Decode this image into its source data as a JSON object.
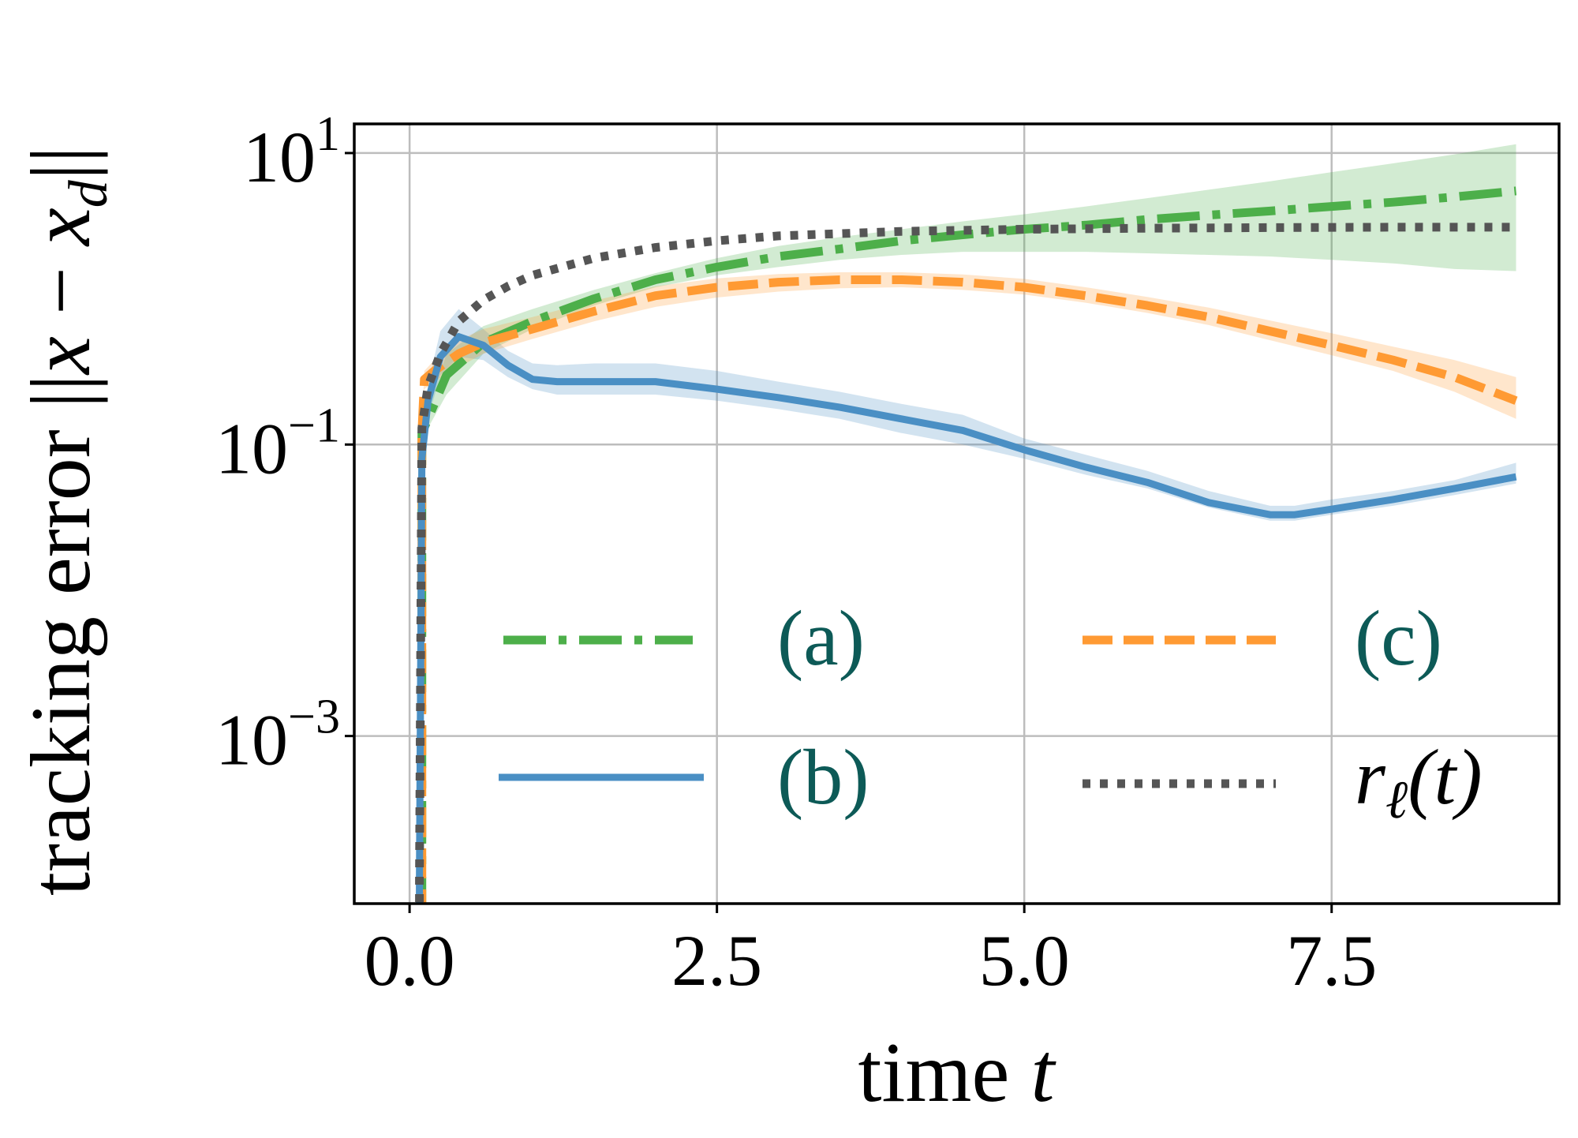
{
  "chart_data": {
    "type": "line",
    "title": "",
    "xlabel": "time t",
    "xlabel_parts": {
      "text": "time ",
      "var": "t"
    },
    "ylabel": "tracking error ||x − x_d||",
    "ylabel_parts": {
      "text": "tracking error ",
      "norm_open": "||",
      "var": "x",
      "minus": " − ",
      "var2": "x",
      "sub": "d",
      "norm_close": "||"
    },
    "yscale": "log",
    "xlim": [
      -0.45,
      9.35
    ],
    "ylim_exp": [
      -4.15,
      1.2
    ],
    "grid": true,
    "x_ticks": [
      0.0,
      2.5,
      5.0,
      7.5
    ],
    "x_tick_labels": [
      "0.0",
      "2.5",
      "5.0",
      "7.5"
    ],
    "y_ticks": [
      {
        "exp": 1,
        "base": "10",
        "sup": "1"
      },
      {
        "exp": -1,
        "base": "10",
        "sup": "−1"
      },
      {
        "exp": -3,
        "base": "10",
        "sup": "−3"
      }
    ],
    "legend_position": "center",
    "legend_text_color": "#0d5a57",
    "series": [
      {
        "name": "(a)",
        "label": "(a)",
        "color": "#4daf4a",
        "style": "dashdot",
        "x": [
          0.1,
          0.15,
          0.3,
          0.6,
          1.0,
          1.5,
          2.0,
          2.5,
          3.0,
          3.5,
          4.0,
          4.5,
          5.0,
          5.5,
          6.0,
          6.5,
          7.0,
          7.5,
          8.0,
          8.5,
          9.0
        ],
        "y": [
          0.12,
          0.15,
          0.3,
          0.5,
          0.7,
          1.0,
          1.35,
          1.65,
          1.95,
          2.2,
          2.5,
          2.75,
          3.0,
          3.2,
          3.5,
          3.75,
          4.0,
          4.3,
          4.6,
          5.0,
          5.5
        ],
        "lo": [
          0.11,
          0.13,
          0.22,
          0.42,
          0.62,
          0.9,
          1.2,
          1.45,
          1.65,
          1.85,
          2.0,
          2.1,
          2.1,
          2.1,
          2.05,
          2.0,
          1.95,
          1.85,
          1.75,
          1.6,
          1.55
        ],
        "hi": [
          0.14,
          0.18,
          0.42,
          0.65,
          0.85,
          1.15,
          1.5,
          1.9,
          2.3,
          2.65,
          3.0,
          3.4,
          3.8,
          4.3,
          4.9,
          5.6,
          6.4,
          7.4,
          8.5,
          9.8,
          11.5
        ]
      },
      {
        "name": "(b)",
        "label": "(b)",
        "color": "#4a8fc4",
        "style": "solid",
        "x": [
          0.08,
          0.1,
          0.15,
          0.25,
          0.4,
          0.6,
          0.8,
          1.0,
          1.2,
          1.5,
          2.0,
          2.5,
          3.0,
          3.5,
          4.0,
          4.5,
          5.0,
          5.5,
          6.0,
          6.5,
          7.0,
          7.2,
          7.5,
          8.0,
          8.5,
          9.0
        ],
        "y": [
          0.0001,
          0.08,
          0.2,
          0.4,
          0.55,
          0.48,
          0.35,
          0.28,
          0.27,
          0.27,
          0.27,
          0.24,
          0.21,
          0.18,
          0.15,
          0.125,
          0.092,
          0.07,
          0.055,
          0.04,
          0.033,
          0.033,
          0.036,
          0.042,
          0.05,
          0.06
        ],
        "lo": [
          0.0001,
          0.07,
          0.15,
          0.3,
          0.4,
          0.38,
          0.29,
          0.24,
          0.22,
          0.22,
          0.22,
          0.2,
          0.175,
          0.15,
          0.12,
          0.1,
          0.08,
          0.062,
          0.05,
          0.037,
          0.03,
          0.03,
          0.033,
          0.038,
          0.045,
          0.054
        ],
        "hi": [
          0.0001,
          0.09,
          0.26,
          0.6,
          0.85,
          0.62,
          0.44,
          0.36,
          0.35,
          0.36,
          0.36,
          0.32,
          0.27,
          0.23,
          0.19,
          0.16,
          0.11,
          0.085,
          0.066,
          0.048,
          0.038,
          0.038,
          0.042,
          0.048,
          0.057,
          0.075
        ]
      },
      {
        "name": "(c)",
        "label": "(c)",
        "color": "#ff9a33",
        "style": "dashed",
        "x": [
          0.1,
          0.12,
          0.2,
          0.4,
          0.6,
          1.0,
          1.5,
          2.0,
          2.5,
          3.0,
          3.5,
          4.0,
          4.5,
          5.0,
          5.5,
          6.0,
          6.5,
          7.0,
          7.5,
          8.0,
          8.5,
          9.0
        ],
        "y": [
          0.12,
          0.28,
          0.32,
          0.42,
          0.5,
          0.62,
          0.82,
          1.05,
          1.2,
          1.3,
          1.35,
          1.35,
          1.3,
          1.2,
          1.05,
          0.9,
          0.75,
          0.6,
          0.48,
          0.38,
          0.29,
          0.2
        ],
        "lo": [
          0.11,
          0.24,
          0.27,
          0.34,
          0.42,
          0.53,
          0.7,
          0.88,
          1.02,
          1.12,
          1.18,
          1.2,
          1.15,
          1.07,
          0.94,
          0.8,
          0.66,
          0.52,
          0.41,
          0.32,
          0.23,
          0.15
        ],
        "hi": [
          0.13,
          0.32,
          0.38,
          0.52,
          0.62,
          0.75,
          0.97,
          1.22,
          1.38,
          1.48,
          1.52,
          1.52,
          1.47,
          1.37,
          1.2,
          1.03,
          0.87,
          0.71,
          0.58,
          0.47,
          0.38,
          0.29
        ]
      },
      {
        "name": "r_ℓ(t)",
        "label": "r_ℓ(t)",
        "color": "#555555",
        "style": "dotted",
        "label_parts": {
          "var": "r",
          "sub": "ℓ",
          "arg": "(t)"
        },
        "x": [
          0.08,
          0.1,
          0.15,
          0.25,
          0.4,
          0.6,
          0.8,
          1.0,
          1.5,
          2.0,
          2.5,
          3.0,
          4.0,
          5.0,
          6.0,
          7.0,
          8.0,
          9.0
        ],
        "y": [
          0.0001,
          0.13,
          0.25,
          0.42,
          0.7,
          0.98,
          1.22,
          1.45,
          1.9,
          2.25,
          2.5,
          2.7,
          2.9,
          3.0,
          3.05,
          3.08,
          3.1,
          3.1
        ]
      }
    ]
  }
}
